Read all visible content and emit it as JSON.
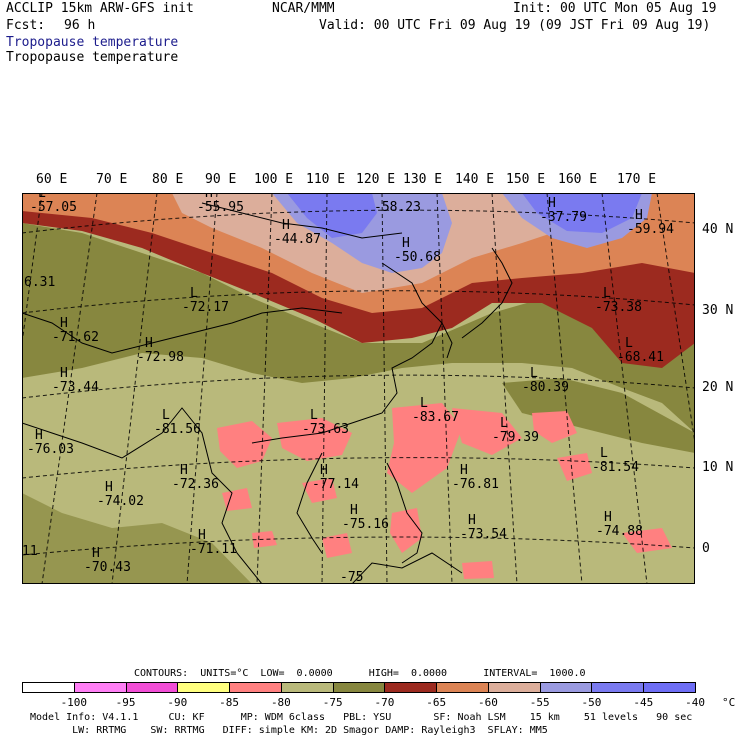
{
  "header": {
    "model": "ACCLIP 15km ARW-GFS init",
    "org": "NCAR/MMM",
    "init": "Init: 00 UTC Mon 05 Aug 19",
    "fcst_label": "Fcst:",
    "fcst_value": "96 h",
    "valid": "Valid: 00 UTC Fri 09 Aug 19 (09 JST Fri 09 Aug 19)",
    "field1": "Tropopause temperature",
    "field2": "Tropopause temperature"
  },
  "axes": {
    "lon_labels": [
      "60 E",
      "70 E",
      "80 E",
      "90 E",
      "100 E",
      "110 E",
      "120 E",
      "130 E",
      "140 E",
      "150 E",
      "160 E",
      "170 E"
    ],
    "lat_labels": [
      "40 N",
      "30 N",
      "20 N",
      "10 N",
      "0"
    ]
  },
  "chart_data": {
    "type": "heatmap",
    "field": "Tropopause temperature",
    "units": "°C",
    "annotations": [
      {
        "type": "L",
        "value": "-57.05"
      },
      {
        "type": "H",
        "value": "-55.95"
      },
      {
        "type": "",
        "value": "-58.23"
      },
      {
        "type": "H",
        "value": "-37.79"
      },
      {
        "type": "H",
        "value": "-59.94"
      },
      {
        "type": "H",
        "value": "-44.87"
      },
      {
        "type": "H",
        "value": "-50.68"
      },
      {
        "type": "",
        "value": "6.31"
      },
      {
        "type": "L",
        "value": "-72.17"
      },
      {
        "type": "L",
        "value": "-73.38"
      },
      {
        "type": "H",
        "value": "-71.62"
      },
      {
        "type": "H",
        "value": "-72.98"
      },
      {
        "type": "L",
        "value": "-68.41"
      },
      {
        "type": "L",
        "value": "-80.39"
      },
      {
        "type": "H",
        "value": "-73.44"
      },
      {
        "type": "L",
        "value": "-83.67"
      },
      {
        "type": "L",
        "value": "-81.56"
      },
      {
        "type": "L",
        "value": "-73.63"
      },
      {
        "type": "L",
        "value": "-79.39"
      },
      {
        "type": "H",
        "value": "-76.03"
      },
      {
        "type": "L",
        "value": "-81.54"
      },
      {
        "type": "H",
        "value": "-72.36"
      },
      {
        "type": "H",
        "value": "-77.14"
      },
      {
        "type": "H",
        "value": "-76.81"
      },
      {
        "type": "H",
        "value": "-74.02"
      },
      {
        "type": "H",
        "value": "-75.16"
      },
      {
        "type": "H",
        "value": "-73.54"
      },
      {
        "type": "H",
        "value": "-74.88"
      },
      {
        "type": "H",
        "value": "-71.11"
      },
      {
        "type": "",
        "value": "11"
      },
      {
        "type": "H",
        "value": "-70.43"
      },
      {
        "type": "",
        "value": "-75"
      }
    ],
    "contour_line": "CONTOURS:  UNITS=°C  LOW=  0.0000      HIGH=  0.0000      INTERVAL=  1000.0",
    "colorbar": {
      "labels": [
        "-100",
        "-95",
        "-90",
        "-85",
        "-80",
        "-75",
        "-70",
        "-65",
        "-60",
        "-55",
        "-50",
        "-45",
        "-40",
        "°C"
      ],
      "colors": [
        "#ffffff",
        "#ff7ff5",
        "#f24ed6",
        "#ffff7f",
        "#ff8080",
        "#b9b97b",
        "#87873f",
        "#9c2a1f",
        "#dc8455",
        "#dcae9b",
        "#9a9ae0",
        "#7a7af0",
        "#6e6ef5"
      ]
    },
    "colors": {
      "sea_olive": "#b9b97b",
      "dark_olive": "#87873f",
      "cold_pink": "#ff8080",
      "maroon": "#9c2a1f",
      "orange": "#dc8455",
      "tan": "#dcae9b",
      "lavender": "#9a9ae0",
      "blue": "#7a7af0"
    }
  },
  "footer": {
    "line1": "Model Info: V4.1.1     CU: KF      MP: WDM 6class   PBL: YSU       SF: Noah LSM    15 km    51 levels   90 sec",
    "line2": "       LW: RRTMG    SW: RRTMG   DIFF: simple KM: 2D Smagor DAMP: Rayleigh3  SFLAY: MM5"
  }
}
